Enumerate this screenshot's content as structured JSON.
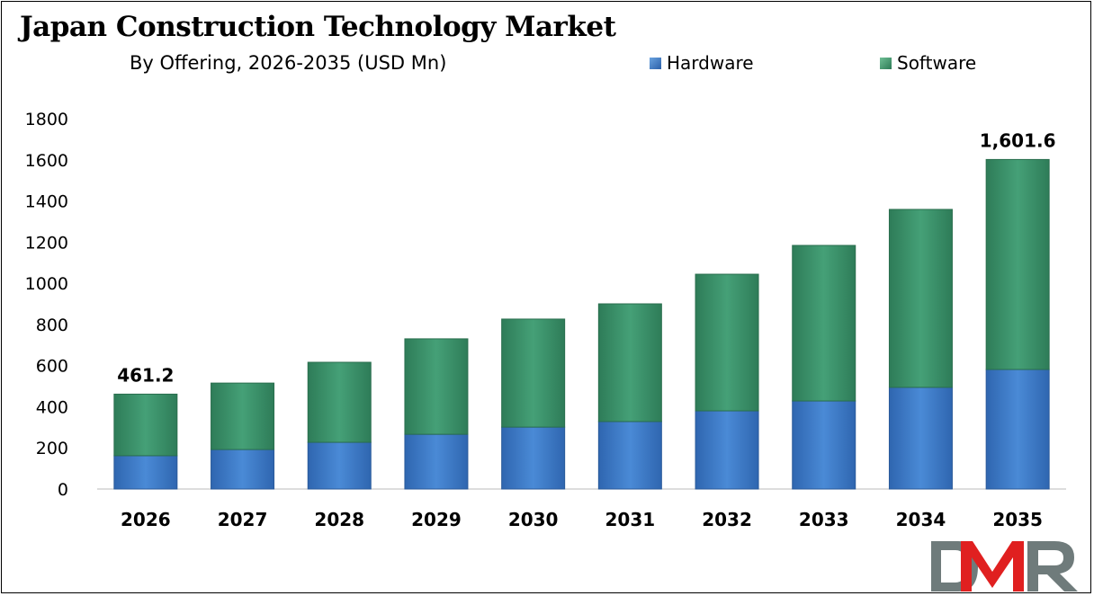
{
  "chart_data": {
    "type": "bar",
    "stacked": true,
    "title": "Japan Construction Technology Market",
    "subtitle": "By Offering, 2026-2035 (USD Mn)",
    "categories": [
      "2026",
      "2027",
      "2028",
      "2029",
      "2030",
      "2031",
      "2032",
      "2033",
      "2034",
      "2035"
    ],
    "series": [
      {
        "name": "Hardware",
        "color": "#3a78c4",
        "values": [
          162,
          192,
          227,
          266,
          301,
          328,
          380,
          428,
          494,
          581
        ]
      },
      {
        "name": "Software",
        "color": "#3a9068",
        "values": [
          299.2,
          323,
          389,
          464,
          525,
          572,
          664,
          756,
          865,
          1020.6
        ]
      }
    ],
    "data_labels": [
      {
        "category": "2026",
        "text": "461.2"
      },
      {
        "category": "2035",
        "text": "1,601.6"
      }
    ],
    "ylim": [
      0,
      1800
    ],
    "yticks": [
      "0",
      "200",
      "400",
      "600",
      "800",
      "1000",
      "1200",
      "1400",
      "1600",
      "1800"
    ],
    "grid": false,
    "legend_position": "top-right"
  },
  "logo": {
    "text": "DMR"
  }
}
